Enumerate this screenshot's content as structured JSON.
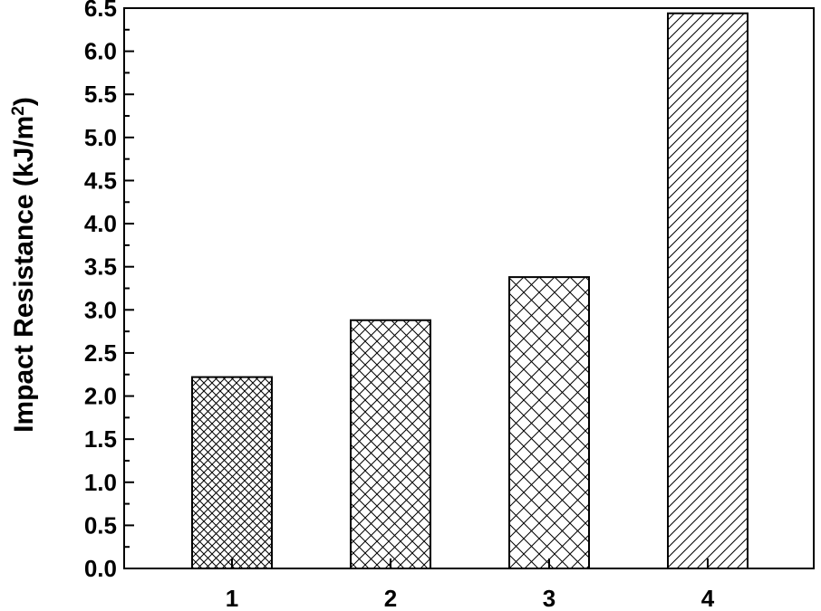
{
  "chart_data": {
    "type": "bar",
    "title": "",
    "xlabel": "",
    "ylabel": "Impact Resistance (kJ/m",
    "ylabel_superscript": "2",
    "ylabel_close": ")",
    "categories": [
      "1",
      "2",
      "3",
      "4"
    ],
    "values": [
      2.22,
      2.88,
      3.38,
      6.44
    ],
    "patterns": [
      "fine-crosshatch",
      "crosshatch",
      "wide-crosshatch",
      "diagonal-hatch"
    ],
    "ylim": [
      0,
      6.5
    ],
    "ytick_step": 0.5,
    "grid": false,
    "legend": "none",
    "bar_fill": "#ffffff",
    "bar_stroke": "#000000"
  }
}
